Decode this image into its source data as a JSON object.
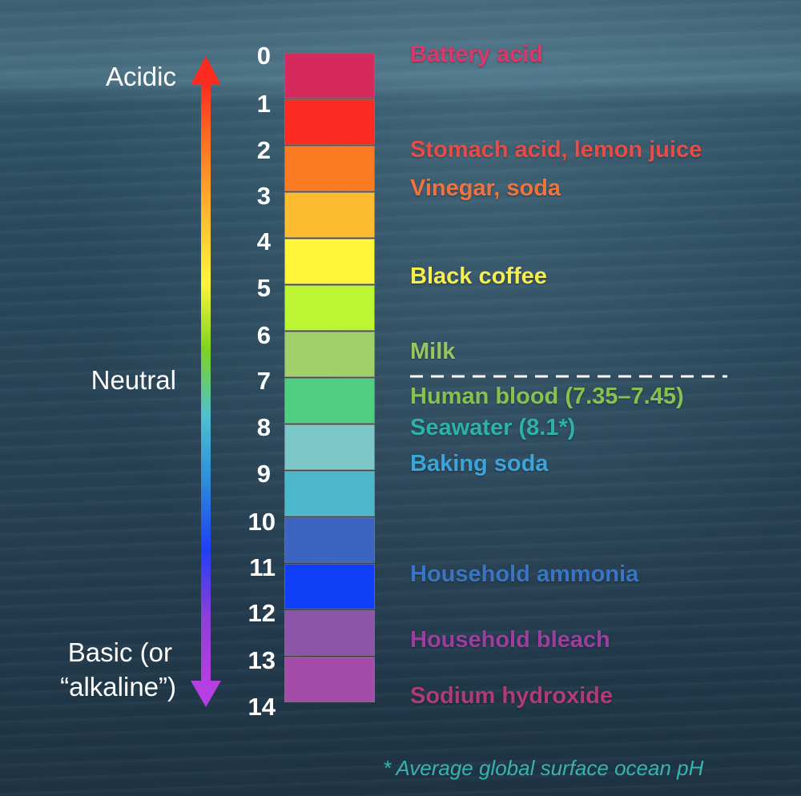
{
  "scale": {
    "numbers": [
      "0",
      "1",
      "2",
      "3",
      "4",
      "5",
      "6",
      "7",
      "8",
      "9",
      "10",
      "11",
      "12",
      "13",
      "14"
    ],
    "colors": [
      "#d62a5e",
      "#fb2b22",
      "#fc7a24",
      "#fdbb2f",
      "#fff53b",
      "#bcf531",
      "#a1d06a",
      "#4fce82",
      "#7ec7c8",
      "#4db7cd",
      "#3b65c1",
      "#0f3ff7",
      "#8d55a7",
      "#a44caa"
    ]
  },
  "side_labels": {
    "acidic": "Acidic",
    "neutral": "Neutral",
    "basic_line1": "Basic (or",
    "basic_line2": "“alkaline”)"
  },
  "arrow": {
    "gradient": [
      "#fb2b22",
      "#fc7a24",
      "#fdbb2f",
      "#fff53b",
      "#7ed321",
      "#4fc0d0",
      "#2c8bd8",
      "#1f3ff7",
      "#8c3fd9",
      "#b53fe0"
    ]
  },
  "substances": [
    {
      "text": "Battery acid",
      "color": "#d9386b"
    },
    {
      "text": "Stomach acid, lemon juice",
      "color": "#e94b46"
    },
    {
      "text": "Vinegar, soda",
      "color": "#f0733d"
    },
    {
      "text": "Black coffee",
      "color": "#f6ee4e"
    },
    {
      "text": "Milk",
      "color": "#96c75e"
    },
    {
      "text": "Human blood (7.35–7.45)",
      "color": "#86c24f"
    },
    {
      "text": "Seawater (8.1*)",
      "color": "#2eb1a7"
    },
    {
      "text": "Baking soda",
      "color": "#3ca4d9"
    },
    {
      "text": "Household ammonia",
      "color": "#3a74c4"
    },
    {
      "text": "Household bleach",
      "color": "#9b3e9e"
    },
    {
      "text": "Sodium hydroxide",
      "color": "#b23a78"
    }
  ],
  "footnote": {
    "text": "* Average global surface ocean pH",
    "color": "#38b3ad"
  }
}
